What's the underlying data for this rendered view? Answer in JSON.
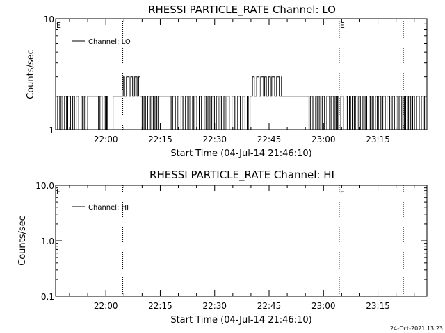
{
  "footer": {
    "timestamp": "24-Oct-2021 13:23"
  },
  "chart_data": [
    {
      "type": "line",
      "title": "RHESSI PARTICLE_RATE Channel: LO",
      "xlabel": "Start Time (04-Jul-14 21:46:10)",
      "ylabel": "Counts/sec",
      "yscale": "log",
      "ylim": [
        1,
        10
      ],
      "ytick_labels": [
        "1",
        "10"
      ],
      "xlim": [
        "21:46:10",
        "23:28:30"
      ],
      "xtick_labels": [
        "22:00",
        "22:15",
        "22:30",
        "22:45",
        "23:00",
        "23:15"
      ],
      "grid": false,
      "legend_position": "top-left",
      "series": [
        {
          "name": "Channel: LO",
          "segments": [
            {
              "from": "21:46:10",
              "to": "21:55:00",
              "pattern": "toggle",
              "values": [
                1,
                2
              ]
            },
            {
              "from": "21:55:00",
              "to": "21:58:00",
              "pattern": "constant",
              "values": [
                2
              ]
            },
            {
              "from": "21:58:00",
              "to": "22:00:30",
              "pattern": "toggle",
              "values": [
                1,
                2
              ]
            },
            {
              "from": "22:00:30",
              "to": "22:02:00",
              "pattern": "constant",
              "values": [
                1
              ]
            },
            {
              "from": "22:02:00",
              "to": "22:04:00",
              "pattern": "constant",
              "values": [
                2
              ]
            },
            {
              "from": "22:04:00",
              "to": "22:10:00",
              "pattern": "toggle",
              "values": [
                2,
                3
              ]
            },
            {
              "from": "22:10:00",
              "to": "22:15:00",
              "pattern": "toggle",
              "values": [
                1,
                2
              ]
            },
            {
              "from": "22:15:00",
              "to": "22:18:00",
              "pattern": "constant",
              "values": [
                2
              ]
            },
            {
              "from": "22:18:00",
              "to": "22:40:00",
              "pattern": "toggle",
              "values": [
                1,
                2
              ]
            },
            {
              "from": "22:40:00",
              "to": "22:48:30",
              "pattern": "toggle",
              "values": [
                2,
                3
              ]
            },
            {
              "from": "22:48:30",
              "to": "22:56:00",
              "pattern": "constant",
              "values": [
                2
              ]
            },
            {
              "from": "22:56:00",
              "to": "23:28:00",
              "pattern": "toggle",
              "values": [
                1,
                2
              ]
            }
          ]
        }
      ],
      "annotations": [
        {
          "time": "22:04:40",
          "text": "",
          "style": "dotted"
        },
        {
          "time": "23:04:20",
          "text": "E",
          "style": "dotted"
        },
        {
          "time": "23:22:00",
          "text": "",
          "style": "dotted"
        },
        {
          "time": "21:46:10",
          "text": "E",
          "style": "none"
        }
      ]
    },
    {
      "type": "line",
      "title": "RHESSI PARTICLE_RATE Channel: HI",
      "xlabel": "Start Time (04-Jul-14 21:46:10)",
      "ylabel": "Counts/sec",
      "yscale": "log",
      "ylim": [
        0.1,
        10
      ],
      "ytick_labels": [
        "0.1",
        "1.0",
        "10.0"
      ],
      "xlim": [
        "21:46:10",
        "23:28:30"
      ],
      "xtick_labels": [
        "22:00",
        "22:15",
        "22:30",
        "22:45",
        "23:00",
        "23:15"
      ],
      "grid": false,
      "legend_position": "top-left",
      "series": [
        {
          "name": "Channel: HI",
          "segments": []
        }
      ],
      "annotations": [
        {
          "time": "22:04:40",
          "text": "",
          "style": "dotted"
        },
        {
          "time": "23:04:20",
          "text": "E",
          "style": "dotted"
        },
        {
          "time": "23:22:00",
          "text": "",
          "style": "dotted"
        },
        {
          "time": "21:46:10",
          "text": "E",
          "style": "none"
        }
      ]
    }
  ]
}
